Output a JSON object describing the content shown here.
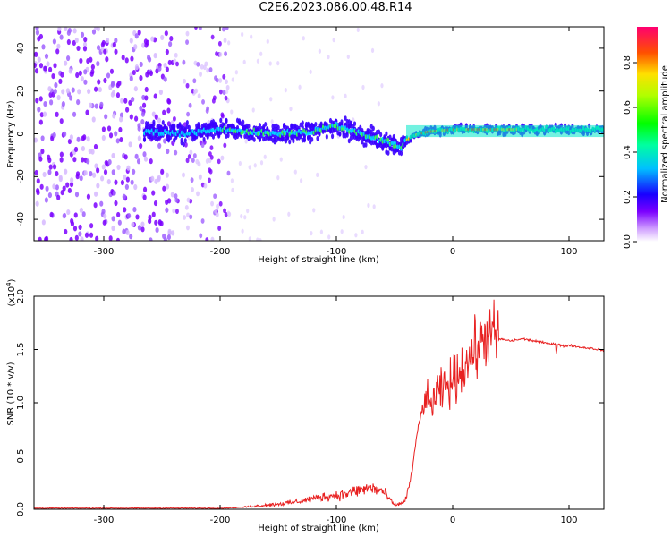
{
  "chart_data": [
    {
      "type": "heatmap",
      "title": "C2E6.2023.086.00.48.R14",
      "xlabel": "Height of straight line (km)",
      "ylabel": "Frequency (Hz)",
      "xlim": [
        -360,
        130
      ],
      "ylim": [
        -50,
        50
      ],
      "xticks": [
        -300,
        -200,
        -100,
        0,
        100
      ],
      "yticks": [
        -40,
        -20,
        0,
        20,
        40
      ],
      "colorbar": {
        "label": "Normalized spectral amplitude",
        "range": [
          0.0,
          0.96
        ],
        "ticks": [
          0.0,
          0.2,
          0.4,
          0.6,
          0.8
        ],
        "colormap": [
          "#ffffff",
          "#7b00ff",
          "#0000ff",
          "#00e0ff",
          "#00ff00",
          "#ffff00",
          "#ff6000",
          "#ff0060"
        ]
      },
      "ridge": {
        "x": [
          -250,
          -230,
          -200,
          -180,
          -150,
          -120,
          -100,
          -80,
          -60,
          -50,
          -45,
          -40,
          -30,
          -20,
          0,
          50,
          100,
          130
        ],
        "freq": [
          1,
          0,
          2,
          1,
          0,
          1,
          4,
          0,
          -3,
          -5,
          -7,
          -3,
          0,
          1,
          2,
          2,
          2,
          2
        ]
      },
      "grid": false
    },
    {
      "type": "line",
      "xlabel": "Height of straight line (km)",
      "ylabel": "SNR (10 * v/v)",
      "y_multiplier": "(x10",
      "y_multiplier_exp": "4",
      "y_multiplier_close": ")",
      "xlim": [
        -360,
        130
      ],
      "ylim": [
        0.0,
        2.0
      ],
      "xticks": [
        -300,
        -200,
        -100,
        0,
        100
      ],
      "yticks": [
        "0.0",
        "0.5",
        "1.0",
        "1.5",
        "2.0"
      ],
      "series": [
        {
          "color": "#e82020",
          "x": [
            -360,
            -300,
            -250,
            -200,
            -180,
            -160,
            -150,
            -140,
            -130,
            -120,
            -110,
            -100,
            -90,
            -80,
            -70,
            -60,
            -55,
            -50,
            -45,
            -40,
            -35,
            -30,
            -25,
            -20,
            -10,
            0,
            10,
            20,
            30,
            40,
            50,
            60,
            70,
            80,
            90,
            95,
            100,
            110,
            120,
            130
          ],
          "y": [
            0.01,
            0.01,
            0.01,
            0.01,
            0.02,
            0.04,
            0.05,
            0.06,
            0.08,
            0.1,
            0.12,
            0.13,
            0.15,
            0.18,
            0.2,
            0.17,
            0.1,
            0.04,
            0.05,
            0.1,
            0.35,
            0.75,
            1.0,
            0.98,
            1.1,
            1.2,
            1.35,
            1.5,
            1.65,
            1.6,
            1.58,
            1.6,
            1.58,
            1.56,
            1.55,
            1.53,
            1.54,
            1.52,
            1.51,
            1.49
          ]
        }
      ],
      "grid": false
    }
  ]
}
